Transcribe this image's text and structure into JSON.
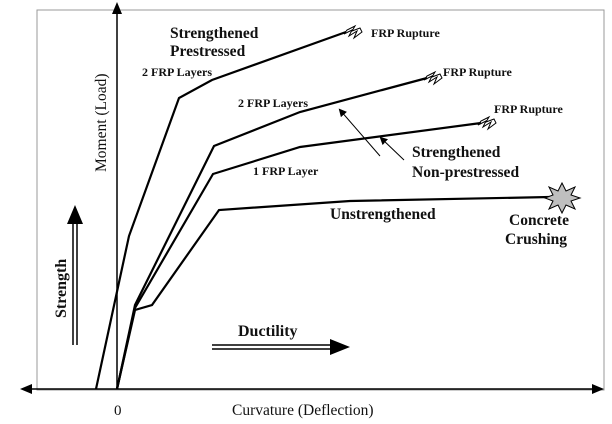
{
  "axes": {
    "y_label": "Moment (Load)",
    "x_label": "Curvature (Deflection)",
    "origin_label": "0"
  },
  "curves": {
    "prestressed": {
      "title_line1": "Strengthened",
      "title_line2": "Prestressed",
      "layers": "2 FRP Layers",
      "end_label": "FRP Rupture"
    },
    "two_layers": {
      "layers": "2 FRP Layers",
      "end_label": "FRP Rupture"
    },
    "one_layer": {
      "layers": "1 FRP Layer",
      "end_label": "FRP Rupture"
    },
    "nonprestressed_group": {
      "line1": "Strengthened",
      "line2": "Non-prestressed"
    },
    "unstrengthened": {
      "label": "Unstrengthened",
      "end_line1": "Concrete",
      "end_line2": "Crushing"
    }
  },
  "indicators": {
    "strength": "Strength",
    "ductility": "Ductility"
  }
}
